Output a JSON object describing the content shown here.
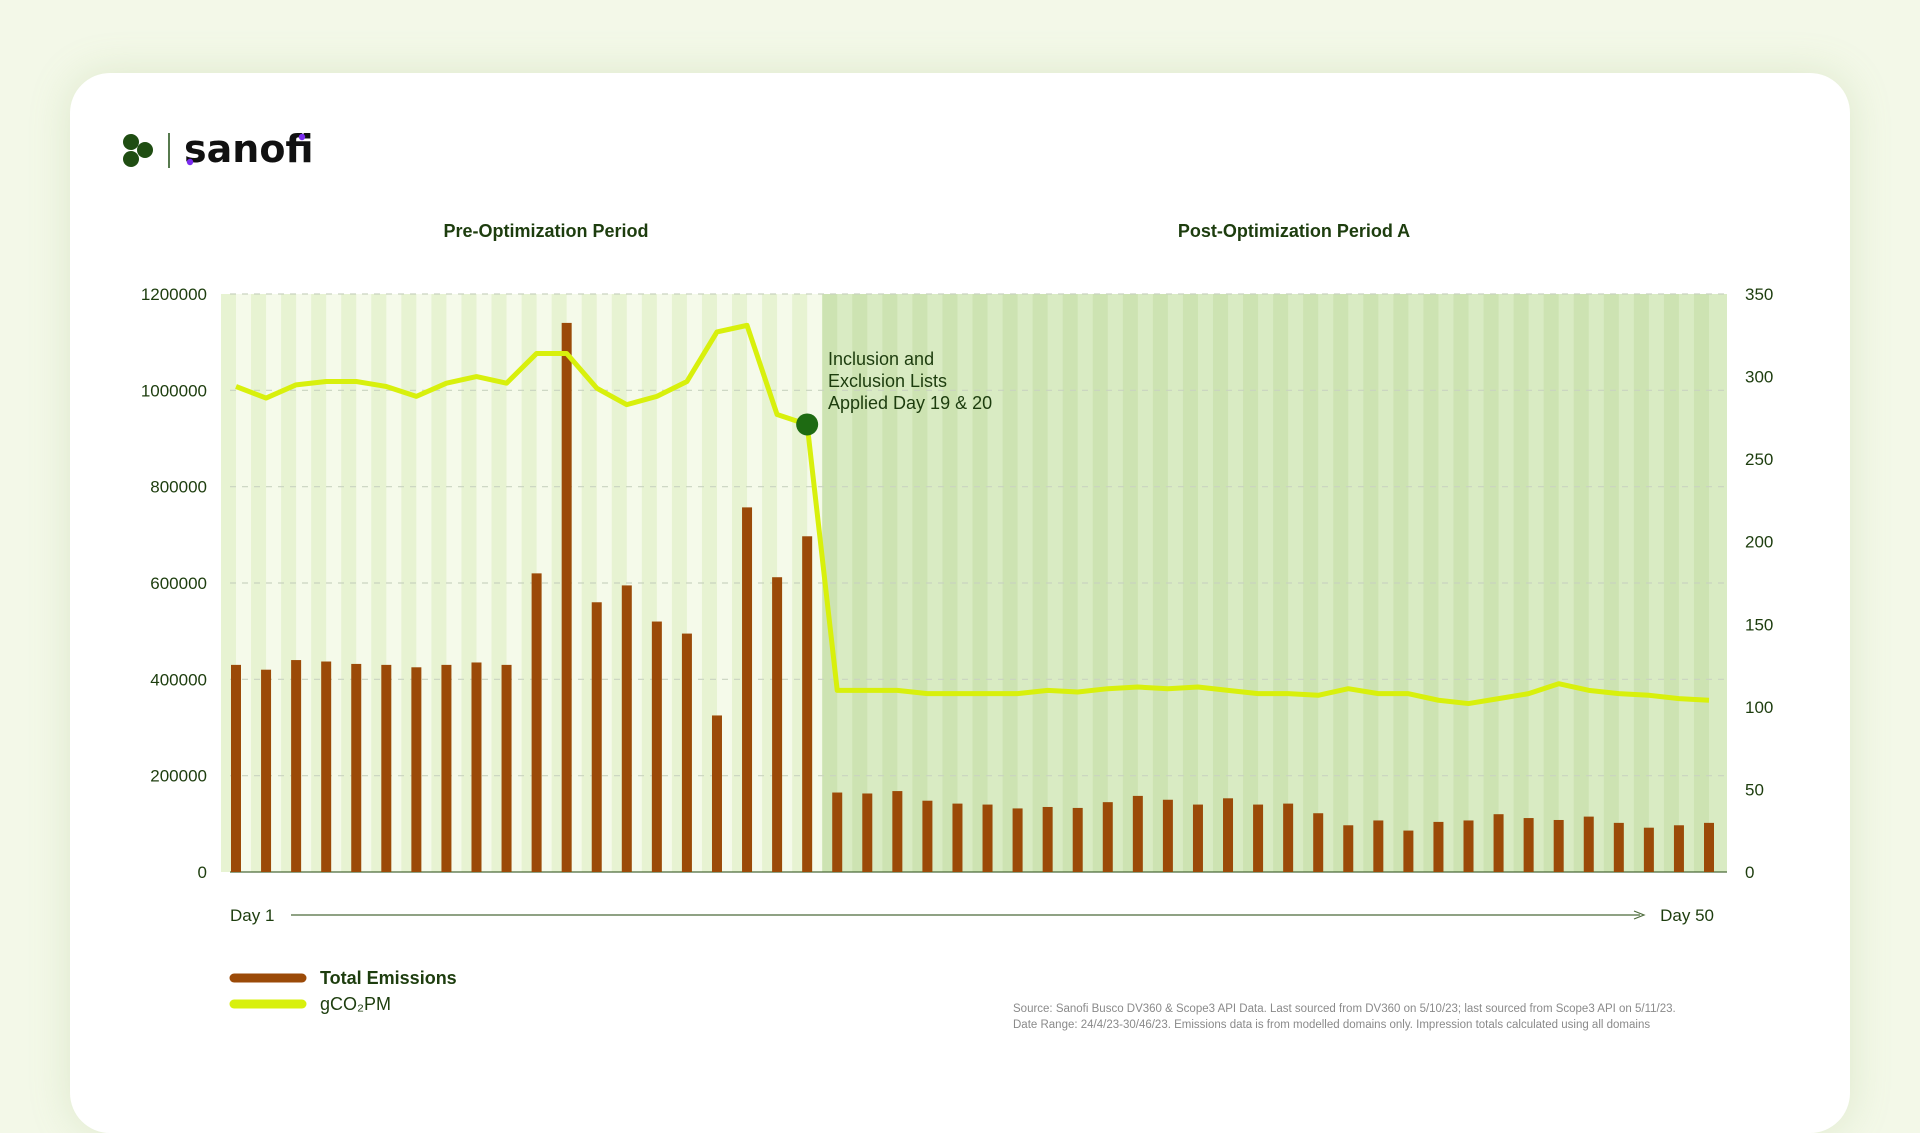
{
  "brand": {
    "name": "sanofi",
    "logo_icon": "sanofi-cluster-icon",
    "colors": {
      "dark_green": "#1f4d12",
      "purple": "#7a2bf0"
    }
  },
  "periods": {
    "pre": "Pre-Optimization Period",
    "post": "Post-Optimization Period A"
  },
  "annotation": {
    "lines": [
      "Inclusion and",
      "Exclusion Lists",
      "Applied Day 19 & 20"
    ],
    "marker_day": 20
  },
  "x_axis": {
    "start_label": "Day 1",
    "end_label": "Day 50"
  },
  "legend": [
    {
      "label": "Total Emissions",
      "color": "#9b4a08"
    },
    {
      "label": "gCO₂PM",
      "color": "#d8f00c"
    }
  ],
  "source": [
    "Source: Sanofi Busco DV360 & Scope3 API Data. Last sourced from DV360 on 5/10/23; last sourced from Scope3 API on 5/11/23.",
    "Date Range: 24/4/23-30/46/23. Emissions data is from modelled domains only. Impression totals calculated using all domains"
  ],
  "chart_data": {
    "type": "bar+line",
    "x": [
      1,
      2,
      3,
      4,
      5,
      6,
      7,
      8,
      9,
      10,
      11,
      12,
      13,
      14,
      15,
      16,
      17,
      18,
      19,
      20,
      21,
      22,
      23,
      24,
      25,
      26,
      27,
      28,
      29,
      30,
      31,
      32,
      33,
      34,
      35,
      36,
      37,
      38,
      39,
      40,
      41,
      42,
      43,
      44,
      45,
      46,
      47,
      48,
      49,
      50
    ],
    "series": [
      {
        "name": "Total Emissions",
        "type": "bar",
        "axis": "left",
        "color": "#9b4a08",
        "values": [
          430000,
          420000,
          440000,
          437000,
          432000,
          430000,
          425000,
          430000,
          435000,
          430000,
          620000,
          1140000,
          560000,
          595000,
          520000,
          495000,
          325000,
          757000,
          612000,
          697000,
          165000,
          163000,
          168000,
          148000,
          142000,
          140000,
          132000,
          135000,
          133000,
          145000,
          158000,
          150000,
          140000,
          153000,
          140000,
          142000,
          122000,
          97000,
          107000,
          86000,
          104000,
          107000,
          120000,
          112000,
          108000,
          115000,
          102000,
          92000,
          97000,
          102000
        ]
      },
      {
        "name": "gCO₂PM",
        "type": "line",
        "axis": "right",
        "color": "#d8f00c",
        "values": [
          294,
          287,
          295,
          297,
          297,
          294,
          288,
          296,
          300,
          296,
          314,
          314,
          293,
          283,
          288,
          297,
          327,
          331,
          277,
          271,
          110,
          110,
          110,
          108,
          108,
          108,
          108,
          110,
          109,
          111,
          112,
          111,
          112,
          110,
          108,
          108,
          107,
          111,
          108,
          108,
          104,
          102,
          105,
          108,
          114,
          110,
          108,
          107,
          105,
          104
        ]
      }
    ],
    "y_left": {
      "range": [
        0,
        1200000
      ],
      "ticks": [
        "0",
        "200000",
        "400000",
        "600000",
        "800000",
        "1000000",
        "1200000"
      ]
    },
    "y_right": {
      "range": [
        0,
        350
      ],
      "ticks": [
        "0",
        "50",
        "100",
        "150",
        "200",
        "250",
        "300",
        "350"
      ]
    },
    "grid": "horizontal dashed",
    "legend_position": "bottom-left",
    "pre_period_days": 20
  }
}
